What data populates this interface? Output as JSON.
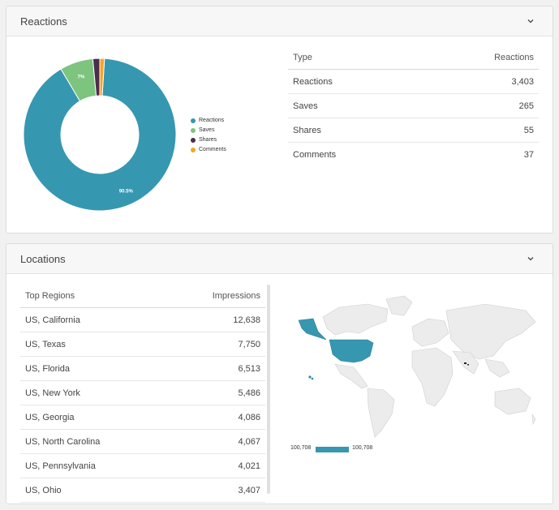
{
  "reactions_card": {
    "title": "Reactions",
    "table": {
      "headers": [
        "Type",
        "Reactions"
      ],
      "rows": [
        [
          "Reactions",
          "3,403"
        ],
        [
          "Saves",
          "265"
        ],
        [
          "Shares",
          "55"
        ],
        [
          "Comments",
          "37"
        ]
      ]
    },
    "donut": {
      "labels": [
        "90.5%",
        "7%"
      ],
      "legend": [
        "Reactions",
        "Saves",
        "Shares",
        "Comments"
      ]
    }
  },
  "locations_card": {
    "title": "Locations",
    "table": {
      "headers": [
        "Top Regions",
        "Impressions"
      ],
      "rows": [
        [
          "US, California",
          "12,638"
        ],
        [
          "US, Texas",
          "7,750"
        ],
        [
          "US, Florida",
          "6,513"
        ],
        [
          "US, New York",
          "5,486"
        ],
        [
          "US, Georgia",
          "4,086"
        ],
        [
          "US, North Carolina",
          "4,067"
        ],
        [
          "US, Pennsylvania",
          "4,021"
        ],
        [
          "US, Ohio",
          "3,407"
        ]
      ]
    },
    "map_legend": {
      "min": "100,708",
      "max": "100,708"
    }
  },
  "chart_data": {
    "type": "pie",
    "categories": [
      "Reactions",
      "Saves",
      "Shares",
      "Comments"
    ],
    "values": [
      3403,
      265,
      55,
      37
    ],
    "colors": [
      "#3697b0",
      "#7dc47f",
      "#4a2e4f",
      "#f5a623"
    ]
  }
}
